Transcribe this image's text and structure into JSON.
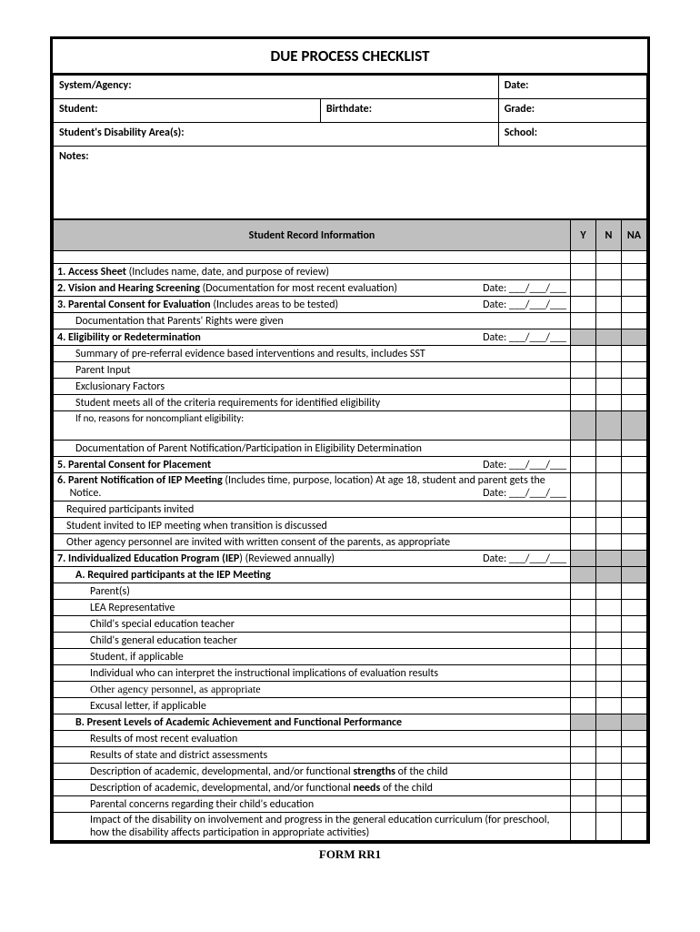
{
  "title": "DUE PROCESS CHECKLIST",
  "header": {
    "system_agency": "System/Agency:",
    "date": "Date:",
    "student": "Student:",
    "birthdate": "Birthdate:",
    "grade": "Grade:",
    "disability": "Student's Disability Area(s):",
    "school": "School:",
    "notes": "Notes:"
  },
  "section_title": "Student Record Information",
  "cols": {
    "y": "Y",
    "n": "N",
    "na": "NA"
  },
  "date_blank": "Date: ___/___/___",
  "rows": [
    {
      "html": "<span class='bold'>1.  Access Sheet</span> (Includes name, date, and purpose of review)",
      "date": false,
      "shaded": [
        false,
        false,
        false
      ]
    },
    {
      "html": "<span class='bold'>2.  Vision and Hearing Screening</span> (Documentation for most recent evaluation)",
      "date": true,
      "shaded": [
        false,
        false,
        false
      ]
    },
    {
      "html": "<span class='bold'>3.  Parental Consent for Evaluation</span> (Includes areas to be tested)",
      "date": true,
      "shaded": [
        false,
        false,
        false
      ]
    },
    {
      "html": "Documentation that Parents' Rights were given",
      "indent": 1,
      "shaded": [
        false,
        false,
        false
      ]
    },
    {
      "html": "<span class='bold'>4.  Eligibility or Redetermination</span>",
      "date": true,
      "shaded": [
        true,
        true,
        true
      ]
    },
    {
      "html": "Summary of pre-referral evidence based interventions and results, includes SST",
      "indent": 1,
      "shaded": [
        false,
        false,
        false
      ]
    },
    {
      "html": "Parent Input",
      "indent": 1,
      "shaded": [
        false,
        false,
        false
      ]
    },
    {
      "html": "Exclusionary Factors",
      "indent": 1,
      "shaded": [
        false,
        false,
        false
      ]
    },
    {
      "html": "Student meets all of the criteria requirements for identified eligibility",
      "indent": 1,
      "shaded": [
        false,
        false,
        false
      ]
    },
    {
      "html": "If no, reasons for noncompliant eligibility:",
      "indent": 1,
      "tall": true,
      "shaded": [
        true,
        true,
        true
      ],
      "small": true
    },
    {
      "html": "Documentation of Parent Notification/Participation in Eligibility Determination",
      "indent": 1,
      "shaded": [
        false,
        false,
        false
      ]
    },
    {
      "html": "<span class='bold'>5.  Parental Consent for Placement</span>",
      "date": true,
      "shaded": [
        false,
        false,
        false
      ]
    },
    {
      "html": "<span class='bold'>6.  Parent Notification of IEP Meeting</span> (Includes time, purpose, location) At age 18, student and parent gets the<br>&nbsp;&nbsp;&nbsp;&nbsp;&nbsp;Notice.",
      "date": true,
      "datepos": "second",
      "shaded": [
        false,
        false,
        false
      ]
    },
    {
      "html": "Required participants invited",
      "indent": 0.5,
      "shaded": [
        false,
        false,
        false
      ]
    },
    {
      "html": "Student invited to IEP meeting when transition is discussed",
      "indent": 0.5,
      "shaded": [
        false,
        false,
        false
      ]
    },
    {
      "html": "Other agency personnel are invited with written consent of the parents, as appropriate",
      "indent": 0.5,
      "shaded": [
        false,
        false,
        false
      ]
    },
    {
      "html": "<span class='bold'>7.  Individualized Education Program (IEP</span>) (Reviewed annually)",
      "date": true,
      "shaded": [
        true,
        true,
        true
      ]
    },
    {
      "html": "<span class='bold'>A.  Required participants at the IEP Meeting</span>",
      "indent": 1,
      "shaded": [
        true,
        true,
        true
      ]
    },
    {
      "html": "Parent(s)",
      "indent": 2,
      "shaded": [
        false,
        false,
        false
      ]
    },
    {
      "html": "LEA Representative",
      "indent": 2,
      "shaded": [
        false,
        false,
        false
      ]
    },
    {
      "html": "Child's special education teacher",
      "indent": 2,
      "shaded": [
        false,
        false,
        false
      ]
    },
    {
      "html": "Child's general education teacher",
      "indent": 2,
      "shaded": [
        false,
        false,
        false
      ]
    },
    {
      "html": "Student, if applicable",
      "indent": 2,
      "shaded": [
        false,
        false,
        false
      ]
    },
    {
      "html": "Individual who can interpret the instructional implications of evaluation results",
      "indent": 2,
      "shaded": [
        false,
        false,
        false
      ]
    },
    {
      "html": "<span style='font-family:Times New Roman,serif'>Other agency personnel, as appropriate</span>",
      "indent": 2,
      "shaded": [
        false,
        false,
        false
      ]
    },
    {
      "html": "Excusal letter, if applicable",
      "indent": 2,
      "shaded": [
        false,
        false,
        false
      ]
    },
    {
      "html": "<span class='bold'>B.  Present Levels of Academic Achievement and Functional Performance</span>",
      "indent": 1,
      "shaded": [
        true,
        true,
        true
      ]
    },
    {
      "html": "Results of most recent evaluation",
      "indent": 2,
      "shaded": [
        false,
        false,
        false
      ]
    },
    {
      "html": "Results of state and district assessments",
      "indent": 2,
      "shaded": [
        false,
        false,
        false
      ]
    },
    {
      "html": "Description of academic, developmental, and/or functional <span class='bold'>strengths</span> of the child",
      "indent": 2,
      "shaded": [
        false,
        false,
        false
      ]
    },
    {
      "html": "Description of academic, developmental, and/or functional <span class='bold'>needs</span> of the child",
      "indent": 2,
      "shaded": [
        false,
        false,
        false
      ]
    },
    {
      "html": "Parental concerns regarding their child's education",
      "indent": 2,
      "shaded": [
        false,
        false,
        false
      ]
    },
    {
      "html": "Impact of the disability on involvement and progress in the general education curriculum (for preschool, how the disability affects participation in appropriate activities)",
      "indent": 2,
      "shaded": [
        false,
        false,
        false
      ]
    }
  ],
  "footer": "FORM  RR1"
}
